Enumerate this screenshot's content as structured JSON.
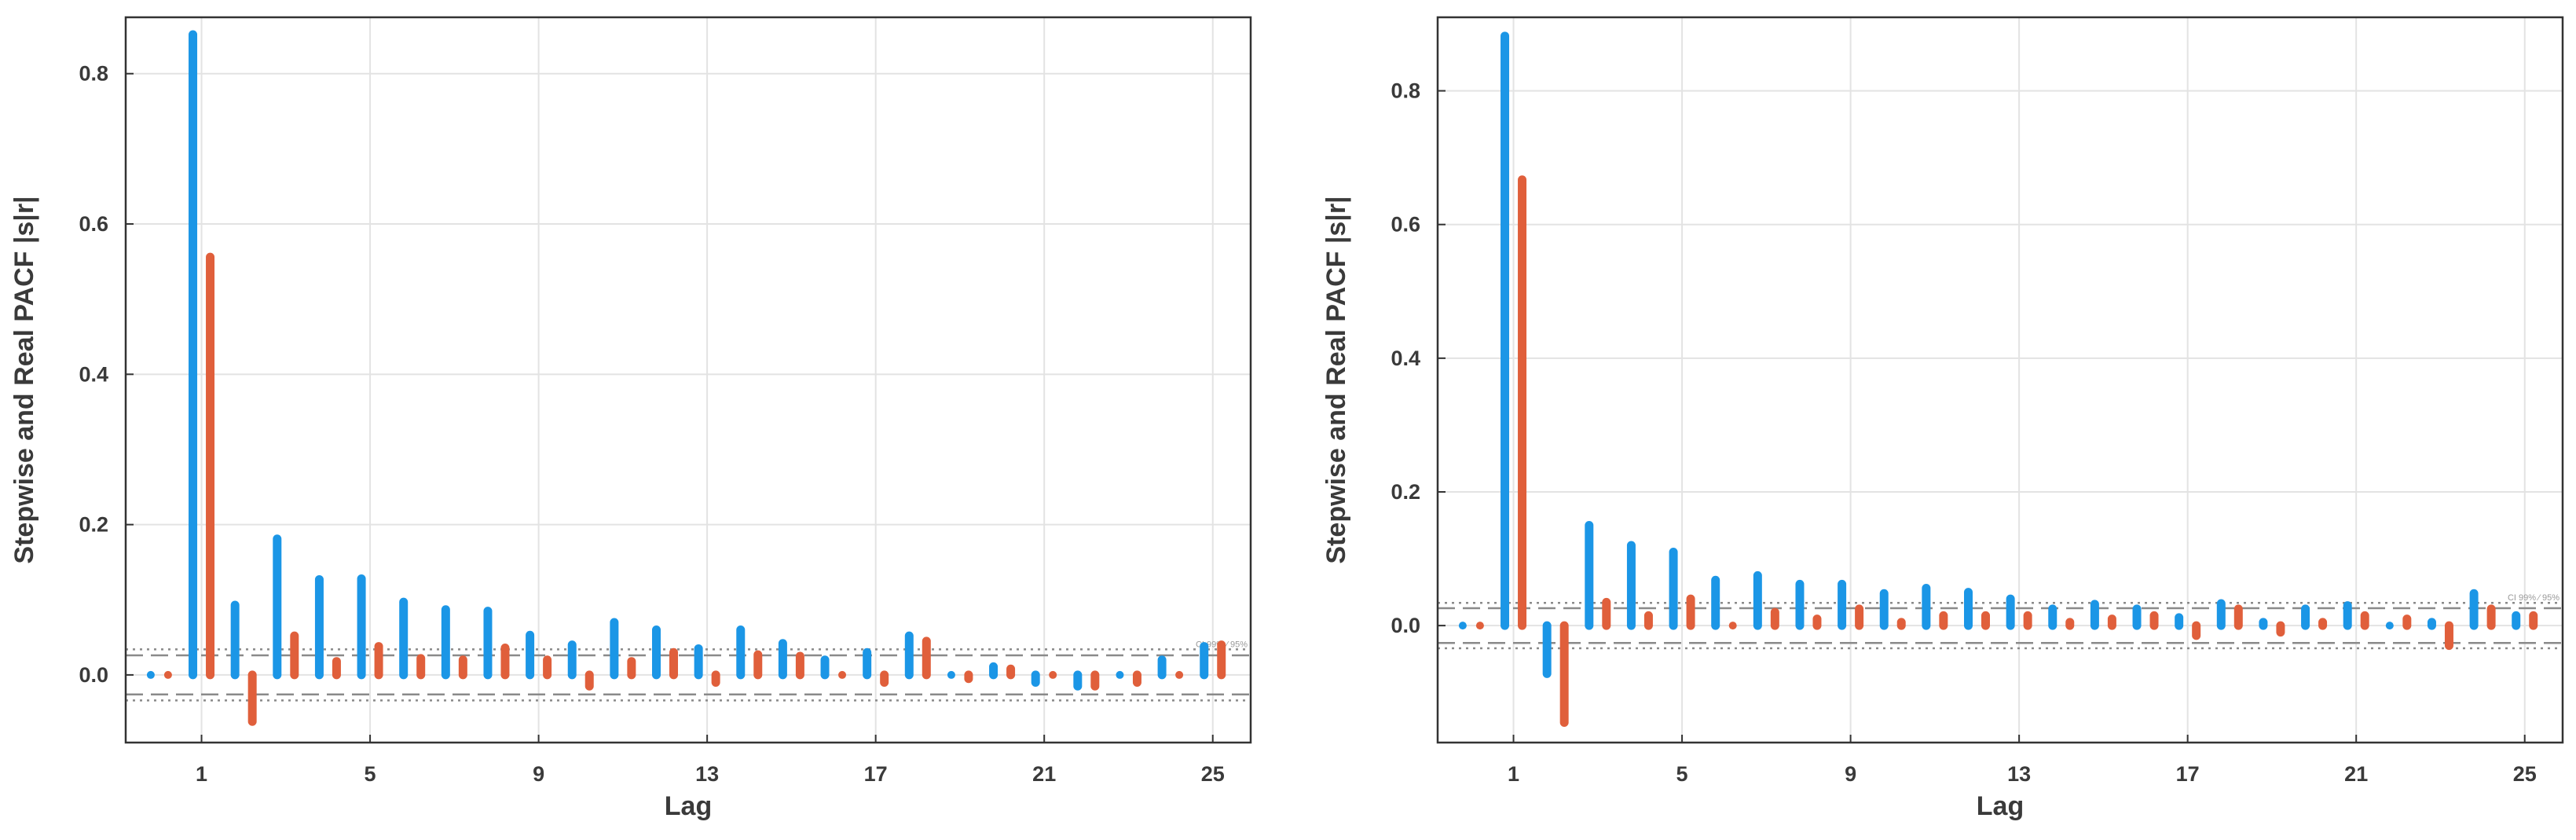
{
  "colors": {
    "stepwise": "#1b96e6",
    "real": "#e05f3b",
    "grid": "#e3e3e3",
    "frame": "#333333",
    "ci": "#8a8a8a"
  },
  "chart_data": [
    {
      "type": "bar",
      "title": "",
      "xlabel": "Lag",
      "ylabel": "Stepwise and Real PACF  |s|r|",
      "x": [
        0,
        1,
        2,
        3,
        4,
        5,
        6,
        7,
        8,
        9,
        10,
        11,
        12,
        13,
        14,
        15,
        16,
        17,
        18,
        19,
        20,
        21,
        22,
        23,
        24,
        25
      ],
      "xticks": [
        1,
        5,
        9,
        13,
        17,
        21,
        25
      ],
      "xlim": [
        -0.8,
        25.9
      ],
      "yticks": [
        0.0,
        0.2,
        0.4,
        0.6,
        0.8
      ],
      "ytick_labels": [
        "0.0",
        "0.2",
        "0.4",
        "0.6",
        "0.8"
      ],
      "ylim": [
        -0.09,
        0.875
      ],
      "ci_label": "CI 99% ⁄ 95%",
      "ci_levels": {
        "inner": 0.026,
        "outer": 0.034
      },
      "legend": "none",
      "grid": true,
      "series": [
        {
          "name": "Stepwise",
          "values": [
            0.0,
            0.852,
            0.093,
            0.181,
            0.127,
            0.128,
            0.097,
            0.087,
            0.085,
            0.053,
            0.04,
            0.07,
            0.06,
            0.035,
            0.06,
            0.042,
            0.02,
            0.03,
            0.052,
            0.003,
            0.011,
            -0.01,
            -0.015,
            0.003,
            0.02,
            0.038
          ]
        },
        {
          "name": "Real",
          "values": [
            0.0,
            0.556,
            -0.062,
            0.052,
            0.018,
            0.038,
            0.022,
            0.02,
            0.036,
            0.02,
            -0.015,
            0.018,
            0.03,
            -0.01,
            0.027,
            0.025,
            0.003,
            -0.01,
            0.045,
            -0.005,
            0.008,
            -0.003,
            -0.015,
            -0.01,
            0.003,
            0.04
          ]
        }
      ]
    },
    {
      "type": "bar",
      "title": "",
      "xlabel": "Lag",
      "ylabel": "Stepwise and Real PACF  |s|r|",
      "x": [
        0,
        1,
        2,
        3,
        4,
        5,
        6,
        7,
        8,
        9,
        10,
        11,
        12,
        13,
        14,
        15,
        16,
        17,
        18,
        19,
        20,
        21,
        22,
        23,
        24,
        25
      ],
      "xticks": [
        1,
        5,
        9,
        13,
        17,
        21,
        25
      ],
      "xlim": [
        -0.8,
        25.9
      ],
      "yticks": [
        0.0,
        0.2,
        0.4,
        0.6,
        0.8
      ],
      "ytick_labels": [
        "0.0",
        "0.2",
        "0.4",
        "0.6",
        "0.8"
      ],
      "ylim": [
        -0.175,
        0.91
      ],
      "ci_label": "CI 99% ⁄ 95%",
      "ci_levels": {
        "inner": 0.026,
        "outer": 0.034
      },
      "legend": "none",
      "grid": true,
      "series": [
        {
          "name": "Stepwise",
          "values": [
            0.0,
            0.882,
            -0.072,
            0.15,
            0.12,
            0.11,
            0.068,
            0.075,
            0.062,
            0.062,
            0.048,
            0.056,
            0.05,
            0.04,
            0.025,
            0.032,
            0.025,
            0.012,
            0.033,
            0.005,
            0.025,
            0.03,
            0.003,
            0.005,
            0.048,
            0.015
          ]
        },
        {
          "name": "Real",
          "values": [
            0.0,
            0.667,
            -0.145,
            0.035,
            0.015,
            0.04,
            0.003,
            0.02,
            0.01,
            0.025,
            0.005,
            0.015,
            0.015,
            0.015,
            0.005,
            0.01,
            0.015,
            -0.015,
            0.025,
            -0.01,
            0.005,
            0.015,
            0.01,
            -0.03,
            0.025,
            0.015
          ]
        }
      ]
    }
  ]
}
